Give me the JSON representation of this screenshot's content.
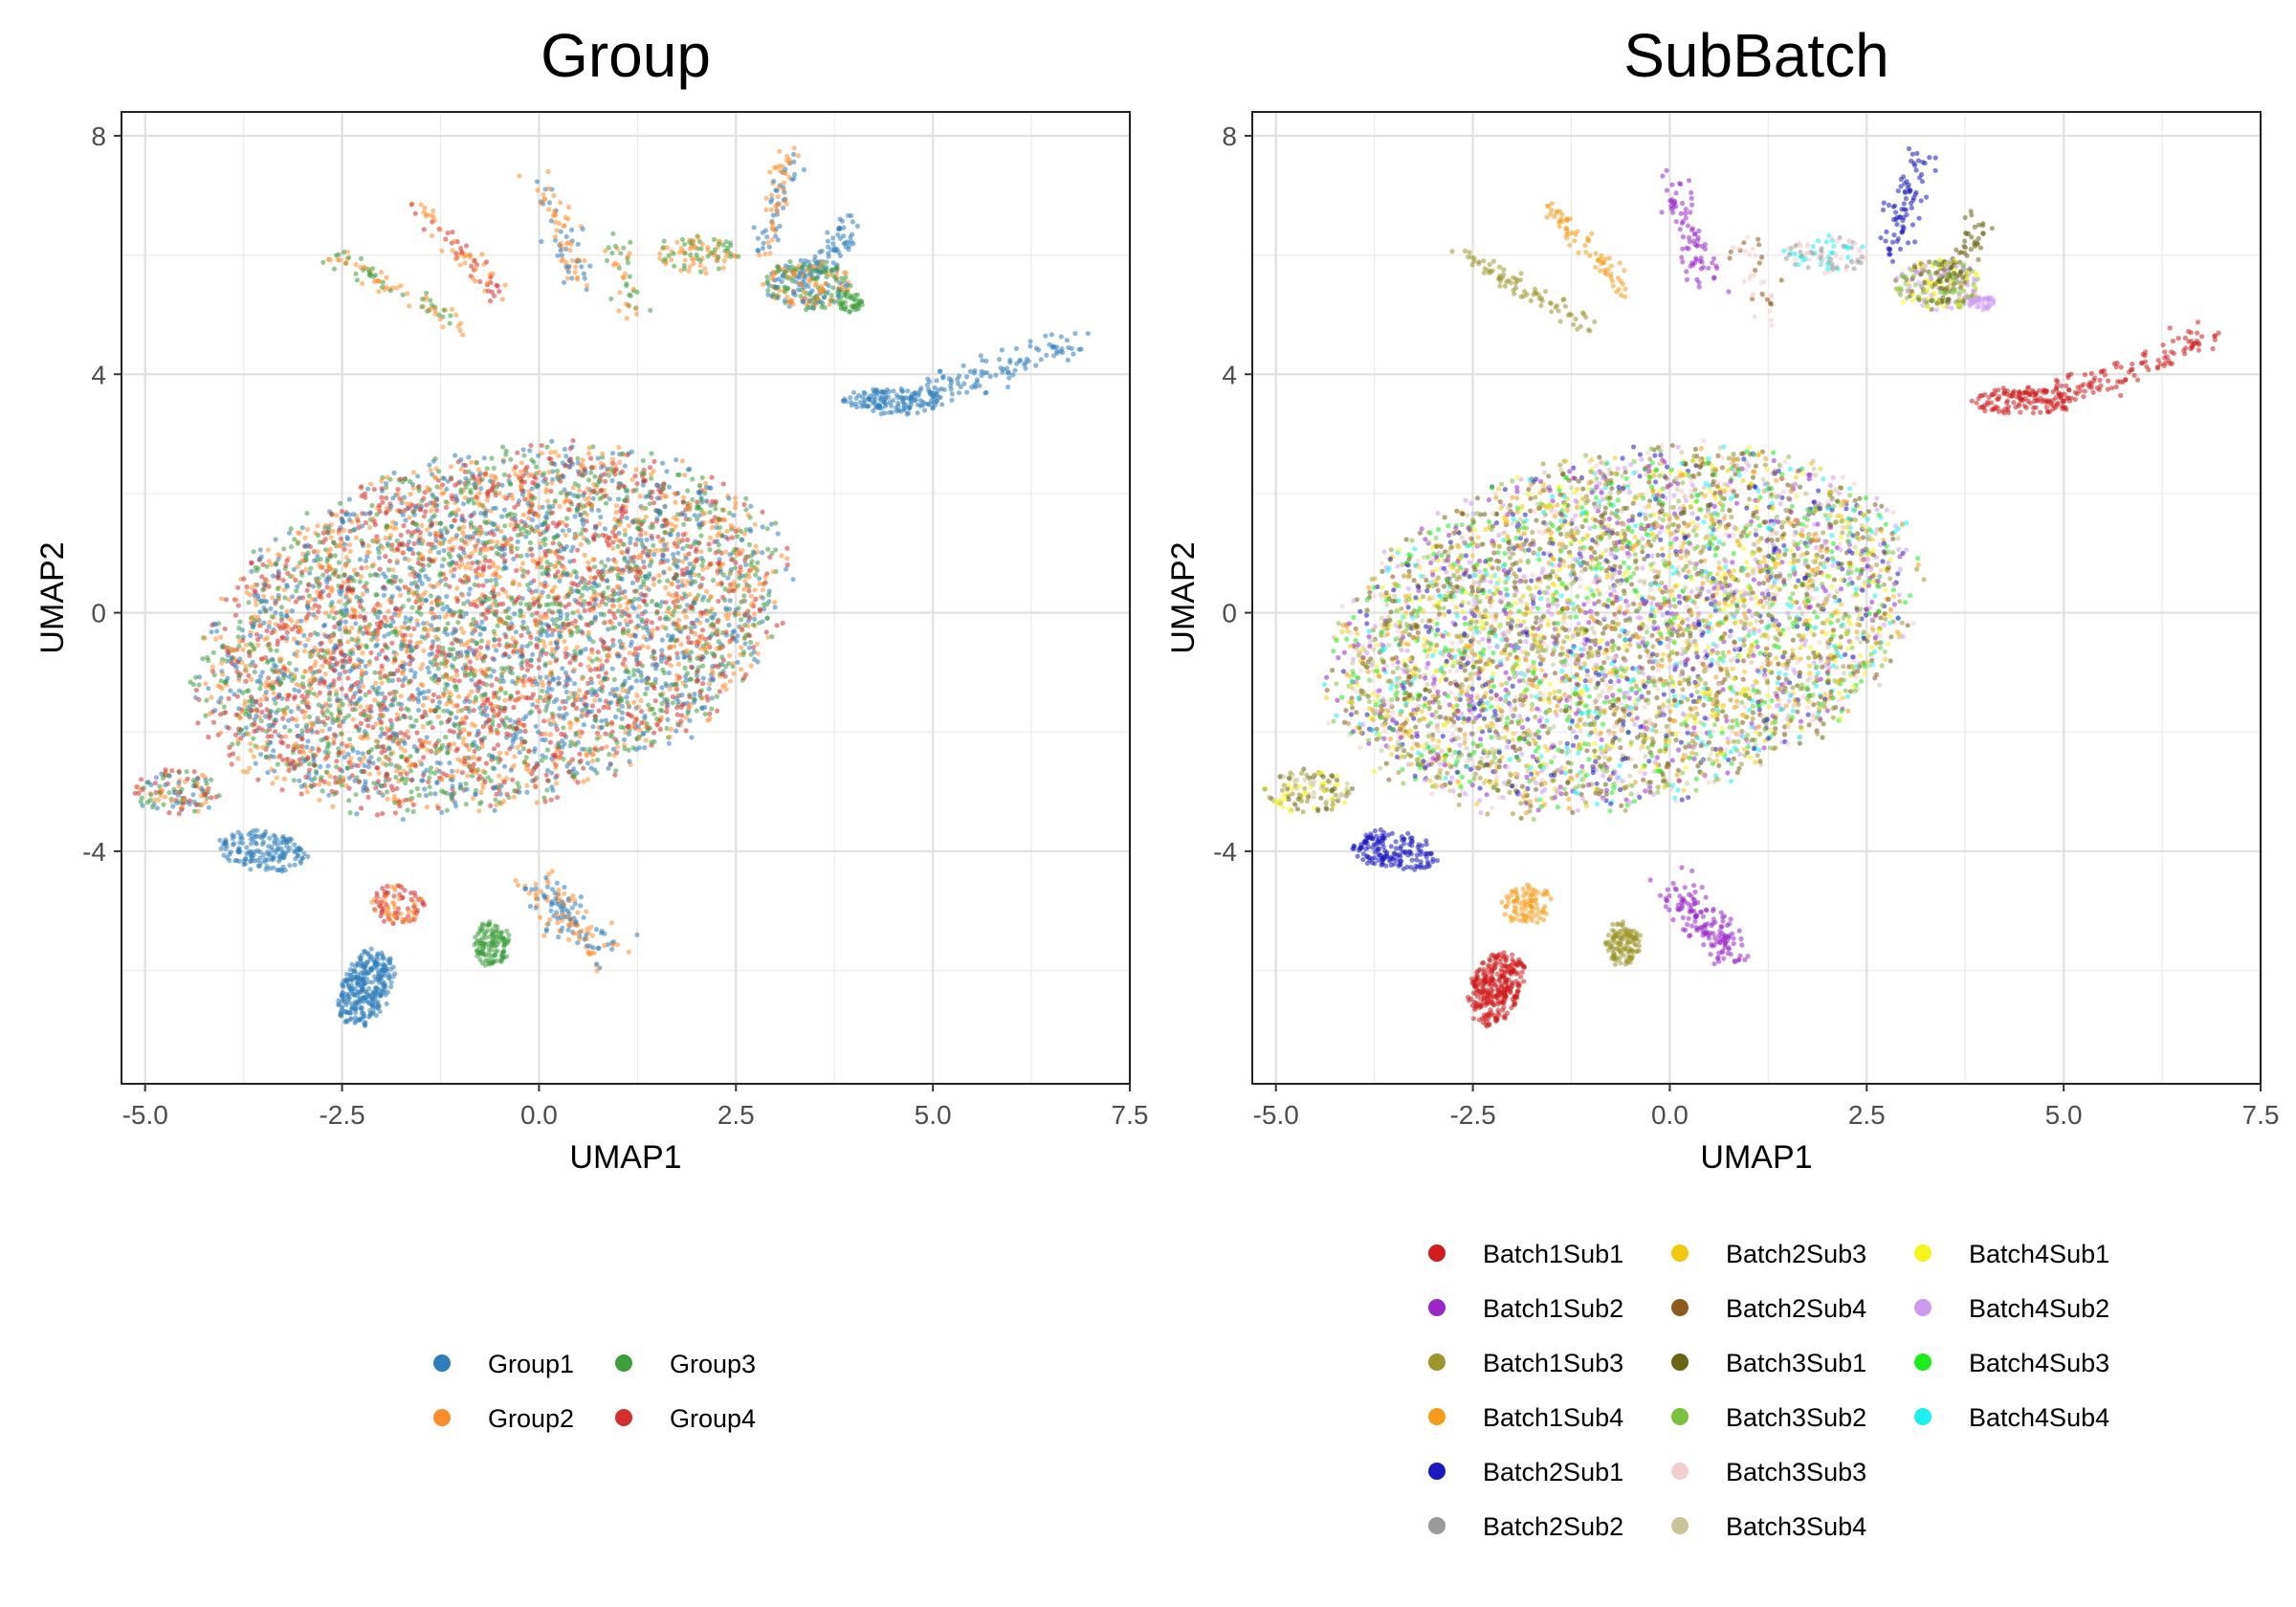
{
  "chart_data": [
    {
      "type": "scatter",
      "title": "Group",
      "xlabel": "UMAP1",
      "ylabel": "UMAP2",
      "xlim": [
        -5.3,
        7.5
      ],
      "ylim": [
        -7.9,
        8.4
      ],
      "x_ticks": [
        -5.0,
        -2.5,
        0.0,
        2.5,
        5.0,
        7.5
      ],
      "x_tick_labels": [
        "-5.0",
        "-2.5",
        "0.0",
        "2.5",
        "5.0",
        "7.5"
      ],
      "y_ticks": [
        -4,
        0,
        4,
        8
      ],
      "y_tick_labels": [
        "-4",
        "0",
        "4",
        "8"
      ],
      "grid": true,
      "legend_position": "bottom",
      "legend_columns": 2,
      "series": [
        {
          "name": "Group1",
          "color": "#2F7DBB"
        },
        {
          "name": "Group2",
          "color": "#FF8C2A"
        },
        {
          "name": "Group3",
          "color": "#3E9E3E"
        },
        {
          "name": "Group4",
          "color": "#D32F2F"
        }
      ],
      "regions": [
        {
          "shape": "ellipse",
          "cx": -0.6,
          "cy": -0.3,
          "rx": 4.1,
          "ry": 3.0,
          "angle": 27,
          "n": 5200,
          "colors": "all"
        },
        {
          "shape": "ellipse",
          "cx": -4.6,
          "cy": -3.0,
          "rx": 0.6,
          "ry": 0.4,
          "angle": 0,
          "n": 120,
          "colors": "all"
        },
        {
          "shape": "line",
          "from": [
            4.6,
            3.5
          ],
          "to": [
            6.9,
            4.6
          ],
          "spread": 0.12,
          "n": 130,
          "colors": [
            0
          ]
        },
        {
          "shape": "ellipse",
          "cx": 4.5,
          "cy": 3.55,
          "rx": 0.7,
          "ry": 0.25,
          "angle": 0,
          "n": 120,
          "colors": [
            0
          ]
        },
        {
          "shape": "line",
          "from": [
            -2.6,
            6.0
          ],
          "to": [
            -1.0,
            4.8
          ],
          "spread": 0.08,
          "n": 80,
          "colors": [
            2,
            1
          ]
        },
        {
          "shape": "line",
          "from": [
            -1.5,
            6.8
          ],
          "to": [
            -0.5,
            5.3
          ],
          "spread": 0.08,
          "n": 70,
          "colors": [
            3,
            1
          ]
        },
        {
          "shape": "line",
          "from": [
            0.0,
            7.3
          ],
          "to": [
            0.5,
            5.5
          ],
          "spread": 0.1,
          "n": 80,
          "colors": [
            1,
            0
          ]
        },
        {
          "shape": "line",
          "from": [
            1.0,
            6.2
          ],
          "to": [
            1.2,
            5.0
          ],
          "spread": 0.1,
          "n": 40,
          "colors": [
            1,
            2
          ]
        },
        {
          "shape": "line",
          "from": [
            3.2,
            7.7
          ],
          "to": [
            2.8,
            6.0
          ],
          "spread": 0.1,
          "n": 80,
          "colors": [
            0,
            1
          ]
        },
        {
          "shape": "line",
          "from": [
            4.0,
            6.6
          ],
          "to": [
            3.4,
            5.5
          ],
          "spread": 0.1,
          "n": 60,
          "colors": [
            0
          ]
        },
        {
          "shape": "ellipse",
          "cx": 3.4,
          "cy": 5.5,
          "rx": 0.6,
          "ry": 0.45,
          "angle": 0,
          "n": 240,
          "colors": [
            2,
            1,
            0
          ]
        },
        {
          "shape": "ellipse",
          "cx": 3.95,
          "cy": 5.2,
          "rx": 0.18,
          "ry": 0.18,
          "angle": 0,
          "n": 40,
          "colors": [
            2
          ]
        },
        {
          "shape": "ellipse",
          "cx": 2.0,
          "cy": 6.0,
          "rx": 0.6,
          "ry": 0.35,
          "angle": 0,
          "n": 90,
          "colors": [
            1,
            2
          ]
        },
        {
          "shape": "ellipse",
          "cx": -3.5,
          "cy": -4.0,
          "rx": 0.6,
          "ry": 0.35,
          "angle": -15,
          "n": 160,
          "colors": [
            0
          ]
        },
        {
          "shape": "ellipse",
          "cx": -2.2,
          "cy": -6.3,
          "rx": 0.35,
          "ry": 0.7,
          "angle": -15,
          "n": 300,
          "colors": [
            0
          ]
        },
        {
          "shape": "ellipse",
          "cx": -1.8,
          "cy": -4.9,
          "rx": 0.35,
          "ry": 0.35,
          "angle": 0,
          "n": 90,
          "colors": [
            1,
            3
          ]
        },
        {
          "shape": "ellipse",
          "cx": -0.6,
          "cy": -5.55,
          "rx": 0.25,
          "ry": 0.4,
          "angle": 0,
          "n": 120,
          "colors": [
            2
          ]
        },
        {
          "shape": "line",
          "from": [
            0.0,
            -4.6
          ],
          "to": [
            0.8,
            -5.7
          ],
          "spread": 0.15,
          "n": 150,
          "colors": [
            0,
            1
          ]
        }
      ]
    },
    {
      "type": "scatter",
      "title": "SubBatch",
      "xlabel": "UMAP1",
      "ylabel": "UMAP2",
      "xlim": [
        -5.3,
        7.5
      ],
      "ylim": [
        -7.9,
        8.4
      ],
      "x_ticks": [
        -5.0,
        -2.5,
        0.0,
        2.5,
        5.0,
        7.5
      ],
      "x_tick_labels": [
        "-5.0",
        "-2.5",
        "0.0",
        "2.5",
        "5.0",
        "7.5"
      ],
      "y_ticks": [
        -4,
        0,
        4,
        8
      ],
      "y_tick_labels": [
        "-4",
        "0",
        "4",
        "8"
      ],
      "grid": true,
      "legend_position": "bottom",
      "legend_columns": 3,
      "series": [
        {
          "name": "Batch1Sub1",
          "color": "#D01C1C"
        },
        {
          "name": "Batch1Sub2",
          "color": "#9B27C9"
        },
        {
          "name": "Batch1Sub3",
          "color": "#9C962C"
        },
        {
          "name": "Batch1Sub4",
          "color": "#F59C1A"
        },
        {
          "name": "Batch2Sub1",
          "color": "#1A1ABF"
        },
        {
          "name": "Batch2Sub2",
          "color": "#9A9A9A"
        },
        {
          "name": "Batch2Sub3",
          "color": "#F2C811"
        },
        {
          "name": "Batch2Sub4",
          "color": "#8C5A1A"
        },
        {
          "name": "Batch3Sub1",
          "color": "#6B6414"
        },
        {
          "name": "Batch3Sub2",
          "color": "#7CC23F"
        },
        {
          "name": "Batch3Sub3",
          "color": "#F2CECE"
        },
        {
          "name": "Batch3Sub4",
          "color": "#C8C497"
        },
        {
          "name": "Batch4Sub1",
          "color": "#F5F51C"
        },
        {
          "name": "Batch4Sub2",
          "color": "#CE9AF0"
        },
        {
          "name": "Batch4Sub3",
          "color": "#1CEB1C"
        },
        {
          "name": "Batch4Sub4",
          "color": "#1CF0F0"
        }
      ],
      "regions": [
        {
          "shape": "ellipse",
          "cx": -0.6,
          "cy": -0.3,
          "rx": 4.1,
          "ry": 3.0,
          "angle": 27,
          "n": 5200,
          "colors": [
            2,
            6,
            8,
            9,
            11,
            12,
            14,
            15,
            13,
            1,
            4,
            7,
            3,
            10
          ]
        },
        {
          "shape": "ellipse",
          "cx": -4.6,
          "cy": -3.0,
          "rx": 0.6,
          "ry": 0.4,
          "angle": 0,
          "n": 120,
          "colors": [
            8,
            11,
            12,
            2
          ]
        },
        {
          "shape": "line",
          "from": [
            4.6,
            3.5
          ],
          "to": [
            6.9,
            4.6
          ],
          "spread": 0.12,
          "n": 130,
          "colors": [
            0
          ]
        },
        {
          "shape": "ellipse",
          "cx": 4.5,
          "cy": 3.55,
          "rx": 0.7,
          "ry": 0.25,
          "angle": 0,
          "n": 120,
          "colors": [
            0
          ]
        },
        {
          "shape": "line",
          "from": [
            -2.6,
            6.0
          ],
          "to": [
            -1.0,
            4.8
          ],
          "spread": 0.08,
          "n": 80,
          "colors": [
            2
          ]
        },
        {
          "shape": "line",
          "from": [
            -1.5,
            6.8
          ],
          "to": [
            -0.5,
            5.3
          ],
          "spread": 0.08,
          "n": 70,
          "colors": [
            3
          ]
        },
        {
          "shape": "line",
          "from": [
            0.0,
            7.3
          ],
          "to": [
            0.5,
            5.5
          ],
          "spread": 0.1,
          "n": 80,
          "colors": [
            1
          ]
        },
        {
          "shape": "line",
          "from": [
            1.0,
            6.2
          ],
          "to": [
            1.2,
            5.0
          ],
          "spread": 0.1,
          "n": 40,
          "colors": [
            7,
            10
          ]
        },
        {
          "shape": "line",
          "from": [
            3.2,
            7.7
          ],
          "to": [
            2.8,
            6.0
          ],
          "spread": 0.1,
          "n": 80,
          "colors": [
            4
          ]
        },
        {
          "shape": "line",
          "from": [
            4.0,
            6.6
          ],
          "to": [
            3.4,
            5.5
          ],
          "spread": 0.1,
          "n": 60,
          "colors": [
            8
          ]
        },
        {
          "shape": "ellipse",
          "cx": 3.4,
          "cy": 5.5,
          "rx": 0.6,
          "ry": 0.45,
          "angle": 0,
          "n": 240,
          "colors": [
            8,
            13,
            12,
            9
          ]
        },
        {
          "shape": "ellipse",
          "cx": 3.95,
          "cy": 5.2,
          "rx": 0.18,
          "ry": 0.18,
          "angle": 0,
          "n": 40,
          "colors": [
            13
          ]
        },
        {
          "shape": "ellipse",
          "cx": 2.0,
          "cy": 6.0,
          "rx": 0.6,
          "ry": 0.35,
          "angle": 0,
          "n": 90,
          "colors": [
            5,
            10,
            15
          ]
        },
        {
          "shape": "ellipse",
          "cx": -3.5,
          "cy": -4.0,
          "rx": 0.6,
          "ry": 0.35,
          "angle": -15,
          "n": 160,
          "colors": [
            4
          ]
        },
        {
          "shape": "ellipse",
          "cx": -2.2,
          "cy": -6.3,
          "rx": 0.35,
          "ry": 0.7,
          "angle": -15,
          "n": 300,
          "colors": [
            0
          ]
        },
        {
          "shape": "ellipse",
          "cx": -1.8,
          "cy": -4.9,
          "rx": 0.35,
          "ry": 0.35,
          "angle": 0,
          "n": 90,
          "colors": [
            3
          ]
        },
        {
          "shape": "ellipse",
          "cx": -0.6,
          "cy": -5.55,
          "rx": 0.25,
          "ry": 0.4,
          "angle": 0,
          "n": 120,
          "colors": [
            2
          ]
        },
        {
          "shape": "line",
          "from": [
            0.0,
            -4.6
          ],
          "to": [
            0.8,
            -5.7
          ],
          "spread": 0.15,
          "n": 150,
          "colors": [
            1
          ]
        }
      ]
    }
  ]
}
